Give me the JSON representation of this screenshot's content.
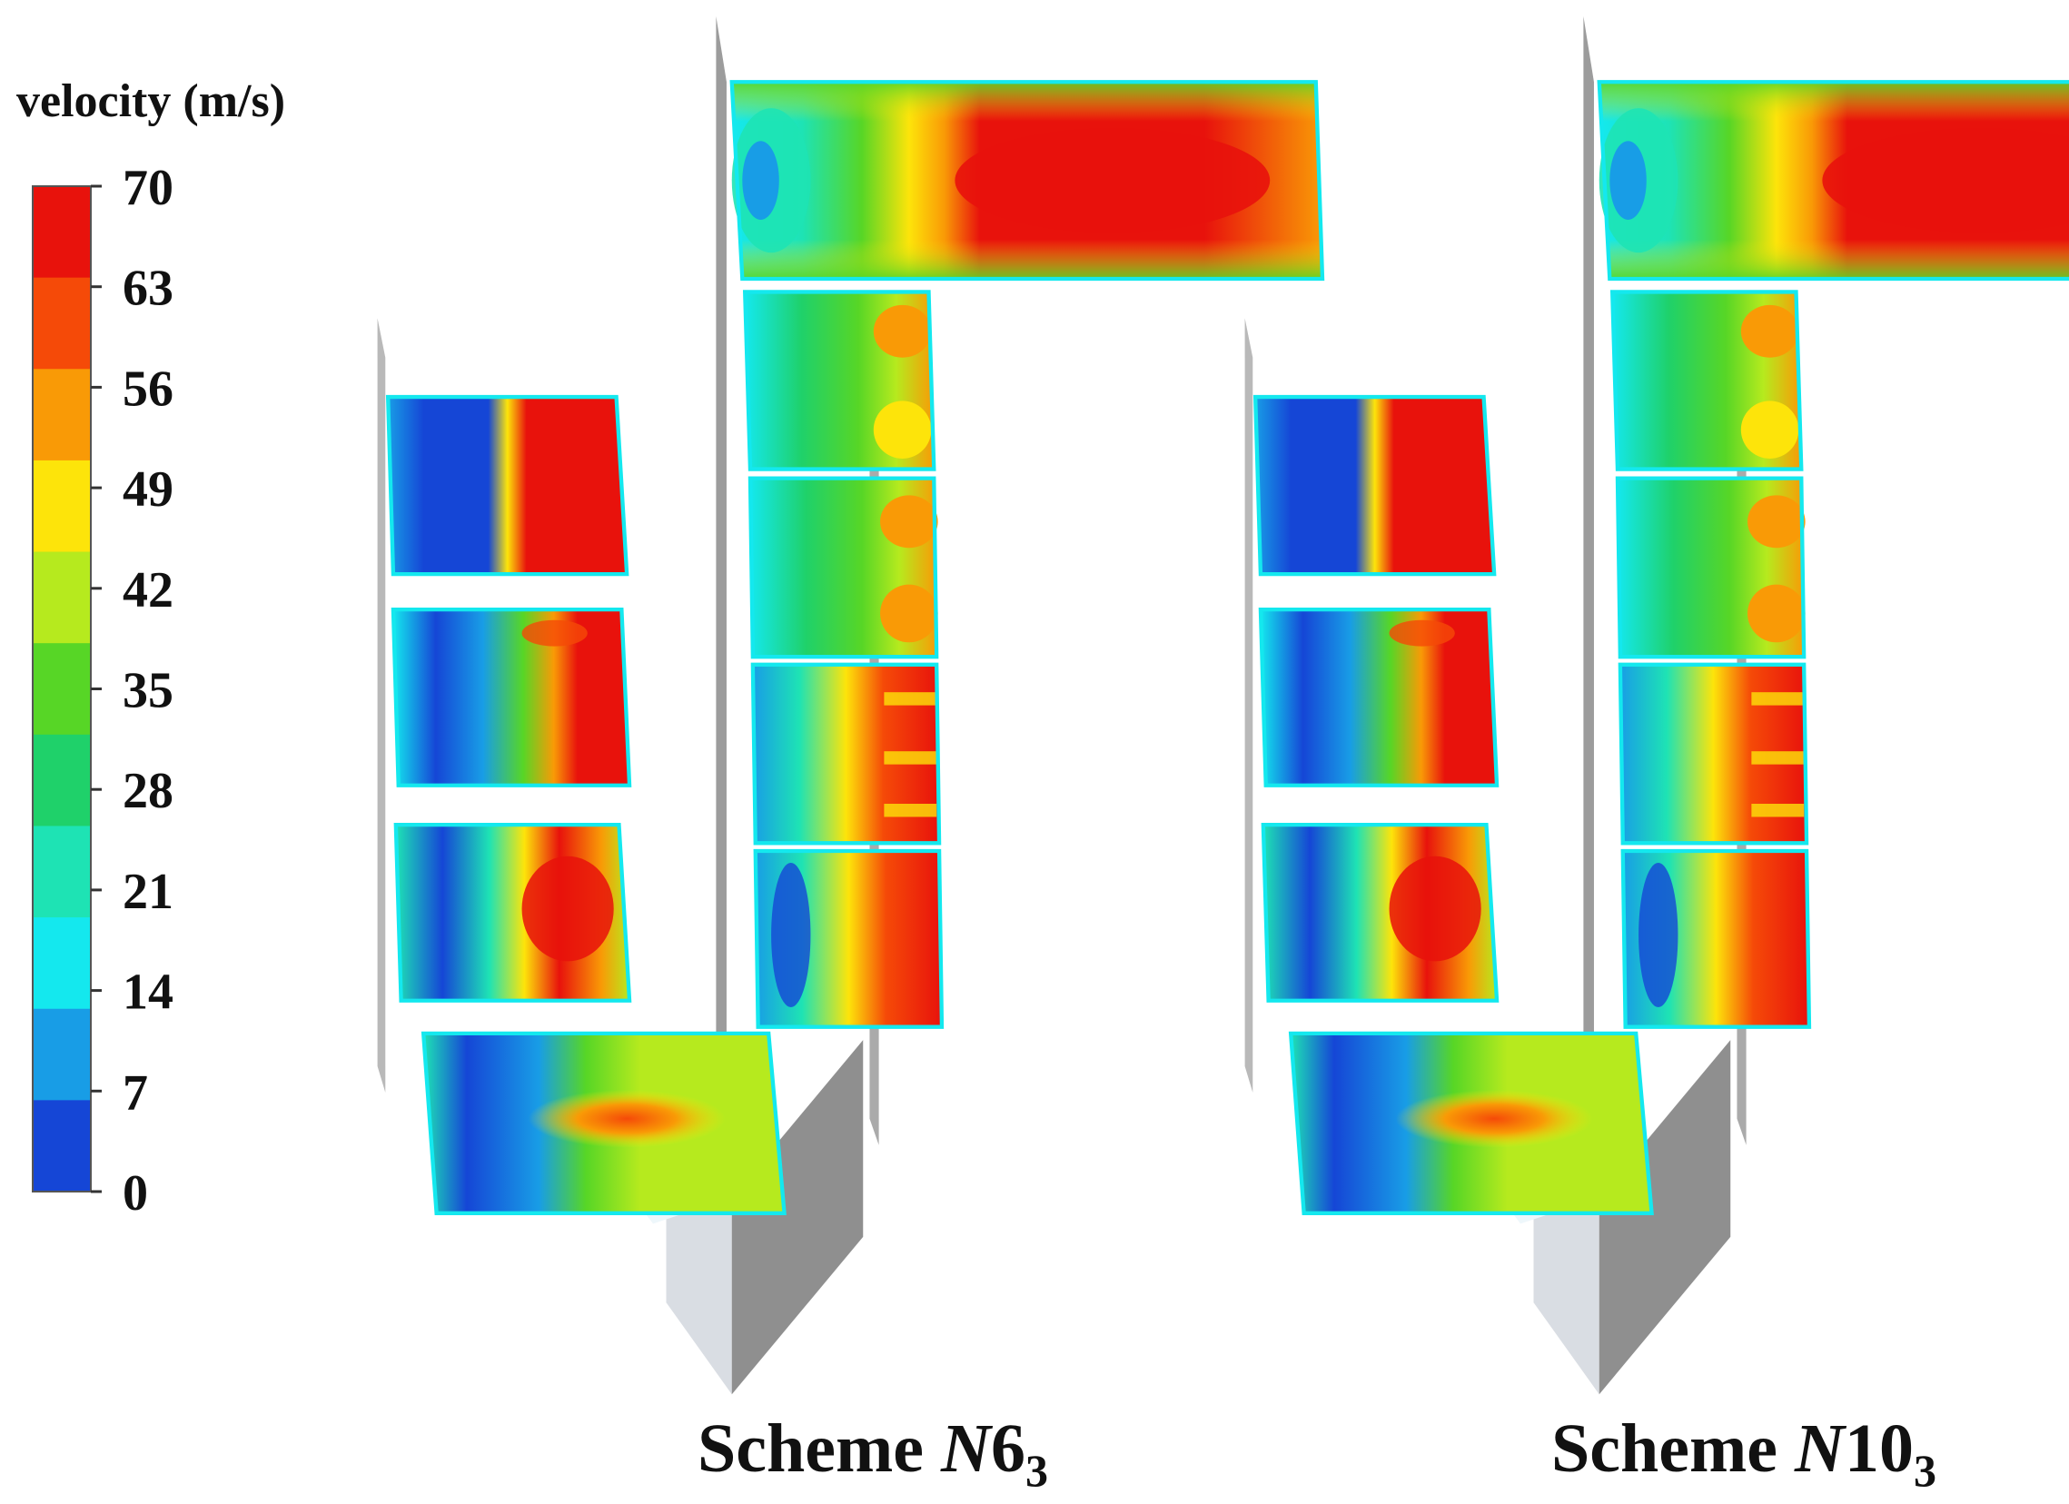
{
  "legend": {
    "title": "velocity  (m/s)",
    "ticks": [
      "70",
      "63",
      "56",
      "49",
      "42",
      "35",
      "28",
      "21",
      "14",
      "7",
      "0"
    ],
    "colors": [
      "#e8120c",
      "#f54a08",
      "#f99a06",
      "#fde40a",
      "#b6ea1e",
      "#57d626",
      "#1fd16a",
      "#1ee3b4",
      "#14e8ee",
      "#189de6",
      "#1546d6"
    ]
  },
  "schemes": [
    {
      "label_main": "Scheme ",
      "label_italic": "N",
      "label_digits": "6",
      "label_sub": "3"
    },
    {
      "label_main": "Scheme ",
      "label_italic": "N",
      "label_digits": "10",
      "label_sub": "3"
    }
  ]
}
